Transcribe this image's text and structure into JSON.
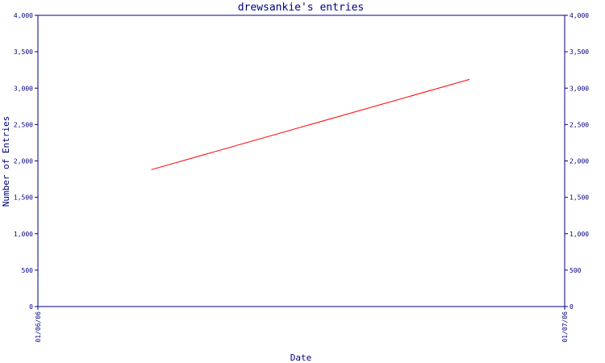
{
  "chart_data": {
    "type": "line",
    "title": "drewsankie's entries",
    "xlabel": "Date",
    "ylabel": "Number of Entries",
    "x_ticks": [
      "01/06/06",
      "01/07/06"
    ],
    "xlim": [
      "2006-01-06",
      "2006-01-07"
    ],
    "ylim": [
      0,
      4000
    ],
    "y_ticks": [
      0,
      500,
      1000,
      1500,
      2000,
      2500,
      3000,
      3500,
      4000
    ],
    "y_tick_labels": [
      "0",
      "500",
      "1,000",
      "1,500",
      "2,000",
      "2,500",
      "3,000",
      "3,500",
      "4,000"
    ],
    "series": [
      {
        "color": "#ff0000",
        "points": [
          {
            "x": "2006-01-06T05:10",
            "y": 1880
          },
          {
            "x": "2006-01-06T19:40",
            "y": 3120
          }
        ]
      }
    ],
    "colors": {
      "axis": "#000080",
      "line": "#ff0000"
    },
    "grid": false,
    "legend": "none"
  }
}
